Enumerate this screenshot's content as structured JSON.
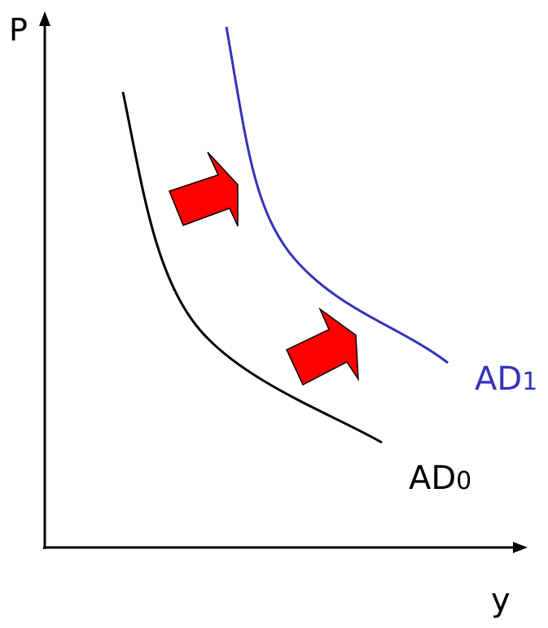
{
  "axes": {
    "y_axis_label": "P",
    "x_axis_label": "y"
  },
  "curves": [
    {
      "name": "AD",
      "subscript": "0",
      "color": "#000000"
    },
    {
      "name": "AD",
      "subscript": "1",
      "color": "#3333bb"
    }
  ],
  "colors": {
    "axis": "#000000",
    "shift_arrow_fill": "#ff0000",
    "shift_arrow_stroke": "#000000"
  },
  "icons": {
    "shift_arrow": "right-arrow-icon"
  }
}
